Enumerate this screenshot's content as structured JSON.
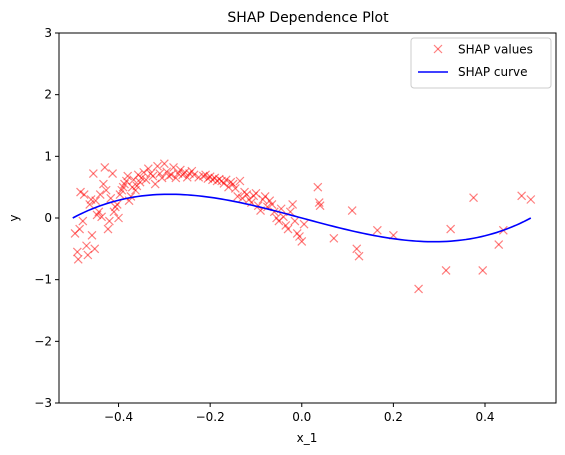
{
  "chart_data": {
    "type": "scatter",
    "title": "SHAP Dependence Plot",
    "xlabel": "x_1",
    "ylabel": "y",
    "xlim": [
      -0.53,
      0.555
    ],
    "ylim": [
      -3,
      3
    ],
    "xticks": [
      -0.4,
      -0.2,
      0.0,
      0.2,
      0.4
    ],
    "xtick_labels": [
      "−0.4",
      "−0.2",
      "0.0",
      "0.2",
      "0.4"
    ],
    "yticks": [
      -3,
      -2,
      -1,
      0,
      1,
      2,
      3
    ],
    "ytick_labels": [
      "−3",
      "−2",
      "−1",
      "0",
      "1",
      "2",
      "3"
    ],
    "grid": false,
    "legend_position": "top-right",
    "series": [
      {
        "name": "SHAP values",
        "kind": "scatter",
        "marker": "x",
        "color": "#ff0000",
        "alpha": 0.5,
        "points": [
          [
            -0.495,
            -0.25
          ],
          [
            -0.49,
            -0.55
          ],
          [
            -0.488,
            -0.67
          ],
          [
            -0.485,
            -0.18
          ],
          [
            -0.483,
            0.42
          ],
          [
            -0.478,
            -0.05
          ],
          [
            -0.475,
            0.38
          ],
          [
            -0.47,
            -0.45
          ],
          [
            -0.467,
            -0.6
          ],
          [
            -0.463,
            0.22
          ],
          [
            -0.46,
            0.3
          ],
          [
            -0.458,
            -0.28
          ],
          [
            -0.455,
            0.72
          ],
          [
            -0.452,
            -0.5
          ],
          [
            -0.45,
            0.28
          ],
          [
            -0.447,
            0.05
          ],
          [
            -0.443,
            0.1
          ],
          [
            -0.44,
            0.38
          ],
          [
            -0.437,
            0.02
          ],
          [
            -0.433,
            0.55
          ],
          [
            -0.43,
            0.82
          ],
          [
            -0.427,
            0.45
          ],
          [
            -0.423,
            -0.18
          ],
          [
            -0.42,
            -0.05
          ],
          [
            -0.417,
            0.32
          ],
          [
            -0.413,
            0.72
          ],
          [
            -0.41,
            0.1
          ],
          [
            -0.407,
            0.18
          ],
          [
            -0.403,
            0.22
          ],
          [
            -0.4,
            0.0
          ],
          [
            -0.397,
            0.38
          ],
          [
            -0.393,
            0.45
          ],
          [
            -0.39,
            0.5
          ],
          [
            -0.387,
            0.55
          ],
          [
            -0.383,
            0.6
          ],
          [
            -0.38,
            0.68
          ],
          [
            -0.377,
            0.28
          ],
          [
            -0.373,
            0.35
          ],
          [
            -0.37,
            0.5
          ],
          [
            -0.367,
            0.62
          ],
          [
            -0.363,
            0.45
          ],
          [
            -0.36,
            0.52
          ],
          [
            -0.357,
            0.7
          ],
          [
            -0.353,
            0.58
          ],
          [
            -0.35,
            0.65
          ],
          [
            -0.345,
            0.74
          ],
          [
            -0.34,
            0.62
          ],
          [
            -0.335,
            0.8
          ],
          [
            -0.33,
            0.72
          ],
          [
            -0.325,
            0.68
          ],
          [
            -0.32,
            0.55
          ],
          [
            -0.315,
            0.84
          ],
          [
            -0.31,
            0.72
          ],
          [
            -0.305,
            0.65
          ],
          [
            -0.3,
            0.88
          ],
          [
            -0.295,
            0.75
          ],
          [
            -0.29,
            0.68
          ],
          [
            -0.285,
            0.7
          ],
          [
            -0.28,
            0.82
          ],
          [
            -0.275,
            0.65
          ],
          [
            -0.27,
            0.72
          ],
          [
            -0.265,
            0.78
          ],
          [
            -0.26,
            0.7
          ],
          [
            -0.255,
            0.74
          ],
          [
            -0.25,
            0.66
          ],
          [
            -0.245,
            0.72
          ],
          [
            -0.24,
            0.76
          ],
          [
            -0.235,
            0.7
          ],
          [
            -0.225,
            0.66
          ],
          [
            -0.215,
            0.68
          ],
          [
            -0.21,
            0.7
          ],
          [
            -0.205,
            0.64
          ],
          [
            -0.2,
            0.67
          ],
          [
            -0.195,
            0.62
          ],
          [
            -0.19,
            0.65
          ],
          [
            -0.185,
            0.6
          ],
          [
            -0.18,
            0.63
          ],
          [
            -0.175,
            0.6
          ],
          [
            -0.17,
            0.56
          ],
          [
            -0.165,
            0.62
          ],
          [
            -0.16,
            0.5
          ],
          [
            -0.155,
            0.58
          ],
          [
            -0.15,
            0.55
          ],
          [
            -0.145,
            0.48
          ],
          [
            -0.14,
            0.35
          ],
          [
            -0.135,
            0.6
          ],
          [
            -0.13,
            0.32
          ],
          [
            -0.125,
            0.42
          ],
          [
            -0.12,
            0.38
          ],
          [
            -0.115,
            0.3
          ],
          [
            -0.11,
            0.25
          ],
          [
            -0.105,
            0.36
          ],
          [
            -0.1,
            0.4
          ],
          [
            -0.095,
            0.2
          ],
          [
            -0.09,
            0.12
          ],
          [
            -0.085,
            0.3
          ],
          [
            -0.08,
            0.35
          ],
          [
            -0.075,
            0.18
          ],
          [
            -0.07,
            0.28
          ],
          [
            -0.065,
            0.22
          ],
          [
            -0.06,
            0.1
          ],
          [
            -0.055,
            0.0
          ],
          [
            -0.05,
            -0.05
          ],
          [
            -0.045,
            0.15
          ],
          [
            -0.04,
            0.02
          ],
          [
            -0.035,
            -0.12
          ],
          [
            -0.03,
            -0.18
          ],
          [
            -0.025,
            0.1
          ],
          [
            -0.02,
            0.22
          ],
          [
            -0.015,
            -0.05
          ],
          [
            -0.01,
            -0.25
          ],
          [
            -0.005,
            -0.3
          ],
          [
            0.0,
            -0.38
          ],
          [
            0.005,
            -0.1
          ],
          [
            0.035,
            0.5
          ],
          [
            0.038,
            0.25
          ],
          [
            0.04,
            0.2
          ],
          [
            0.07,
            -0.33
          ],
          [
            0.11,
            0.12
          ],
          [
            0.12,
            -0.5
          ],
          [
            0.125,
            -0.62
          ],
          [
            0.165,
            -0.2
          ],
          [
            0.2,
            -0.28
          ],
          [
            0.255,
            -1.15
          ],
          [
            0.315,
            -0.85
          ],
          [
            0.325,
            -0.18
          ],
          [
            0.375,
            0.33
          ],
          [
            0.395,
            -0.85
          ],
          [
            0.43,
            -0.43
          ],
          [
            0.44,
            -0.2
          ],
          [
            0.48,
            0.36
          ],
          [
            0.5,
            0.3
          ]
        ]
      },
      {
        "name": "SHAP curve",
        "kind": "line",
        "color": "#0000ff",
        "function": "y = 8x^3 - 2x",
        "x_range": [
          -0.5,
          0.5
        ]
      }
    ]
  }
}
